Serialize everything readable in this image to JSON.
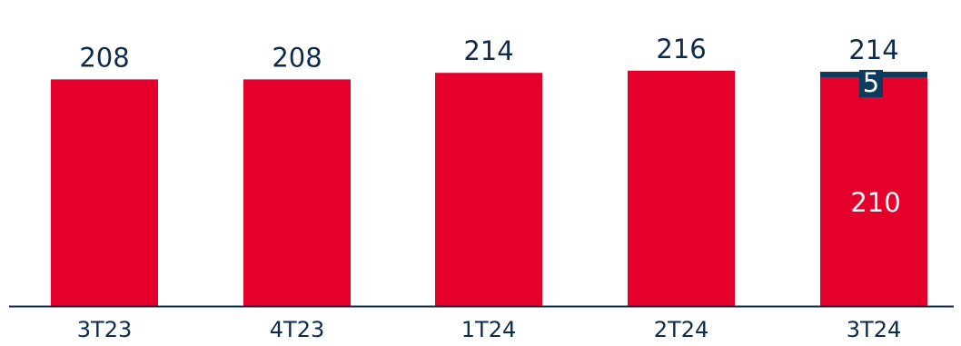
{
  "chart_data": {
    "type": "bar",
    "stacked": true,
    "categories": [
      "3T23",
      "4T23",
      "1T24",
      "2T24",
      "3T24"
    ],
    "totals": [
      208,
      208,
      214,
      216,
      214
    ],
    "series": [
      {
        "values": [
          208,
          208,
          214,
          216,
          210
        ],
        "color": "#e4002b"
      },
      {
        "values": [
          0,
          0,
          0,
          0,
          5
        ],
        "color": "#0d3b5e"
      }
    ],
    "segment_labels": [
      {
        "category": "3T24",
        "series": 0,
        "text": "210"
      },
      {
        "category": "3T24",
        "series": 1,
        "text": "5"
      }
    ],
    "ylim": [
      0,
      225
    ],
    "grid": false,
    "colors": {
      "primary": "#e4002b",
      "secondary": "#0d3b5e",
      "axis": "#0d2b4a",
      "text": "#0d2b4a"
    }
  }
}
